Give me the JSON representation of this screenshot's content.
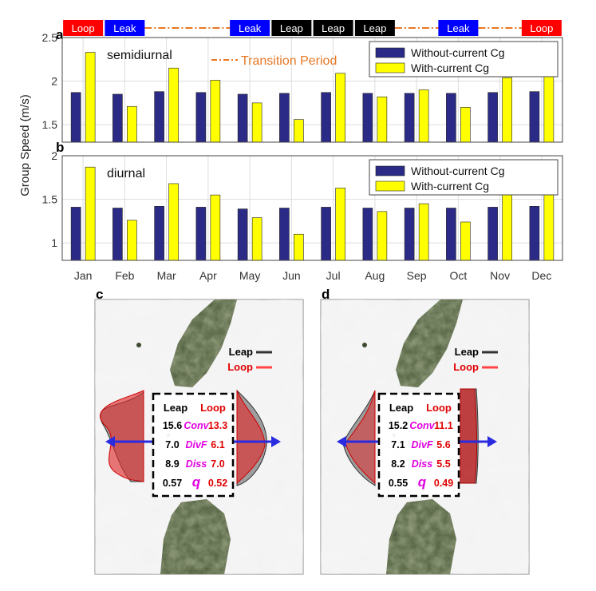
{
  "chart_data": [
    {
      "type": "bar",
      "panel": "a",
      "annotation": "semidiurnal",
      "categories": [
        "Jan",
        "Feb",
        "Mar",
        "Apr",
        "May",
        "Jun",
        "Jul",
        "Aug",
        "Sep",
        "Oct",
        "Nov",
        "Dec"
      ],
      "series": [
        {
          "name": "Without-current Cg",
          "color": "#2b2a86",
          "values": [
            1.87,
            1.85,
            1.88,
            1.87,
            1.85,
            1.86,
            1.87,
            1.86,
            1.86,
            1.86,
            1.87,
            1.88
          ]
        },
        {
          "name": "With-current Cg",
          "color": "#ffff00",
          "values": [
            2.33,
            1.71,
            2.15,
            2.01,
            1.75,
            1.56,
            2.09,
            1.82,
            1.9,
            1.7,
            2.04,
            2.23
          ]
        }
      ],
      "ylim": [
        1.3,
        2.5
      ],
      "yticks": [
        "1.5",
        "2",
        "2.5"
      ],
      "ytick_values": [
        1.5,
        2.0,
        2.5
      ],
      "grid": true,
      "legend": "top-right"
    },
    {
      "type": "bar",
      "panel": "b",
      "annotation": "diurnal",
      "categories": [
        "Jan",
        "Feb",
        "Mar",
        "Apr",
        "May",
        "Jun",
        "Jul",
        "Aug",
        "Sep",
        "Oct",
        "Nov",
        "Dec"
      ],
      "series": [
        {
          "name": "Without-current Cg",
          "color": "#2b2a86",
          "values": [
            1.41,
            1.4,
            1.42,
            1.41,
            1.39,
            1.4,
            1.41,
            1.4,
            1.4,
            1.4,
            1.41,
            1.42
          ]
        },
        {
          "name": "With-current Cg",
          "color": "#ffff00",
          "values": [
            1.87,
            1.26,
            1.68,
            1.55,
            1.29,
            1.1,
            1.63,
            1.36,
            1.45,
            1.24,
            1.58,
            1.77
          ]
        }
      ],
      "ylim": [
        0.8,
        2.0
      ],
      "yticks": [
        "1",
        "1.5",
        "2"
      ],
      "ytick_values": [
        1.0,
        1.5,
        2.0
      ],
      "grid": true,
      "legend": "top-right"
    }
  ],
  "shared": {
    "ylabel": "Group Speed (m/s)",
    "transition_label": "Transition Period",
    "regime_bar": [
      {
        "label": "Loop",
        "month": "Jan",
        "color": "#ff0000"
      },
      {
        "label": "Leak",
        "month": "Feb",
        "color": "#0000ff"
      },
      {
        "label": "Leak",
        "month": "May",
        "color": "#0000ff"
      },
      {
        "label": "Leap",
        "month": "Jun",
        "color": "#000000"
      },
      {
        "label": "Leap",
        "month": "Jul",
        "color": "#000000"
      },
      {
        "label": "Leap",
        "month": "Aug",
        "color": "#000000"
      },
      {
        "label": "Leak",
        "month": "Oct",
        "color": "#0000ff"
      },
      {
        "label": "Loop",
        "month": "Dec",
        "color": "#ff0000"
      }
    ],
    "transition_color": "#e87722"
  },
  "panel_letters": {
    "a": "a",
    "b": "b",
    "c": "c",
    "d": "d"
  },
  "map_panels": [
    {
      "letter": "c",
      "legend": [
        {
          "label": "Leap",
          "color": "#333333"
        },
        {
          "label": "Loop",
          "color": "#ff4444"
        }
      ],
      "header_leap": "Leap",
      "header_loop": "Loop",
      "rows": [
        {
          "leap": "15.6",
          "term": "Conv",
          "loop": "13.3"
        },
        {
          "leap": "7.0",
          "term": "DivF",
          "loop": "6.1"
        },
        {
          "leap": "8.9",
          "term": "Diss",
          "loop": "7.0"
        },
        {
          "leap": "0.57",
          "term": "q",
          "loop": "0.52"
        }
      ]
    },
    {
      "letter": "d",
      "legend": [
        {
          "label": "Leap",
          "color": "#333333"
        },
        {
          "label": "Loop",
          "color": "#ff4444"
        }
      ],
      "header_leap": "Leap",
      "header_loop": "Loop",
      "rows": [
        {
          "leap": "15.2",
          "term": "Conv",
          "loop": "11.1"
        },
        {
          "leap": "7.1",
          "term": "DivF",
          "loop": "5.6"
        },
        {
          "leap": "8.2",
          "term": "Diss",
          "loop": "5.5"
        },
        {
          "leap": "0.55",
          "term": "q",
          "loop": "0.49"
        }
      ]
    }
  ]
}
